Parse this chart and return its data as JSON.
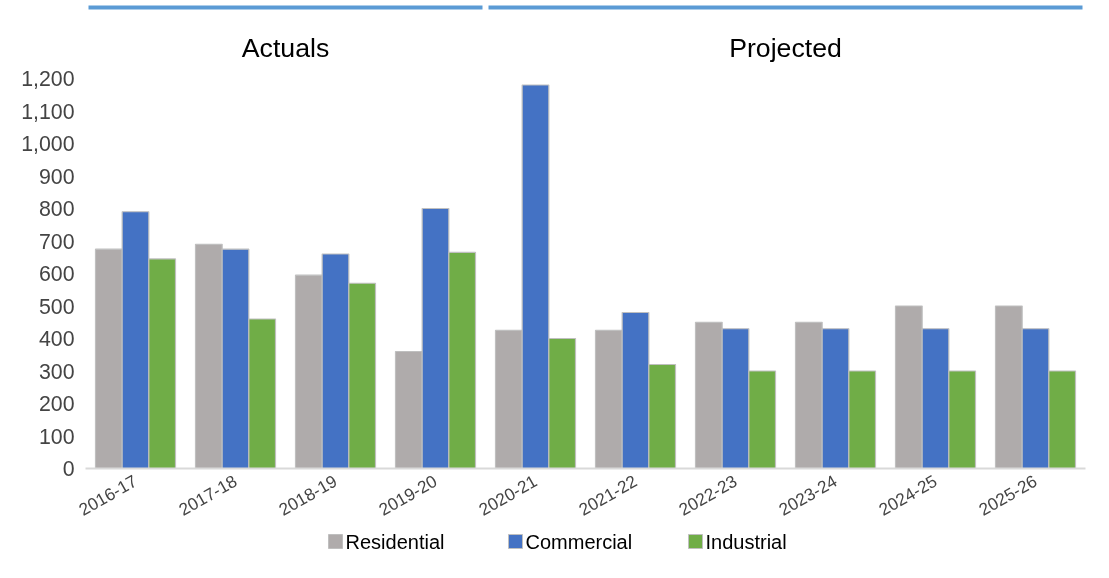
{
  "chart_data": {
    "type": "bar",
    "categories": [
      "2016-17",
      "2017-18",
      "2018-19",
      "2019-20",
      "2020-21",
      "2021-22",
      "2022-23",
      "2023-24",
      "2024-25",
      "2025-26"
    ],
    "series": [
      {
        "name": "Residential",
        "color": "#afabab",
        "values": [
          675,
          690,
          595,
          360,
          425,
          425,
          450,
          450,
          500,
          500
        ]
      },
      {
        "name": "Commercial",
        "color": "#4472c4",
        "values": [
          790,
          675,
          660,
          800,
          1180,
          480,
          430,
          430,
          430,
          430
        ]
      },
      {
        "name": "Industrial",
        "color": "#70ad47",
        "values": [
          645,
          460,
          570,
          665,
          400,
          320,
          300,
          300,
          300,
          300
        ]
      }
    ],
    "ylim": [
      0,
      1200
    ],
    "yticks": [
      {
        "value": 0,
        "label": "0"
      },
      {
        "value": 100,
        "label": "100"
      },
      {
        "value": 200,
        "label": "200"
      },
      {
        "value": 300,
        "label": "300"
      },
      {
        "value": 400,
        "label": "400"
      },
      {
        "value": 500,
        "label": "500"
      },
      {
        "value": 600,
        "label": "600"
      },
      {
        "value": 700,
        "label": "700"
      },
      {
        "value": 800,
        "label": "800"
      },
      {
        "value": 900,
        "label": "900"
      },
      {
        "value": 1000,
        "label": "1,000"
      },
      {
        "value": 1100,
        "label": "1,100"
      },
      {
        "value": 1200,
        "label": "1,200"
      }
    ],
    "annotations": [
      "Actuals",
      "Projected"
    ],
    "grid": false,
    "legend": "bottom"
  }
}
